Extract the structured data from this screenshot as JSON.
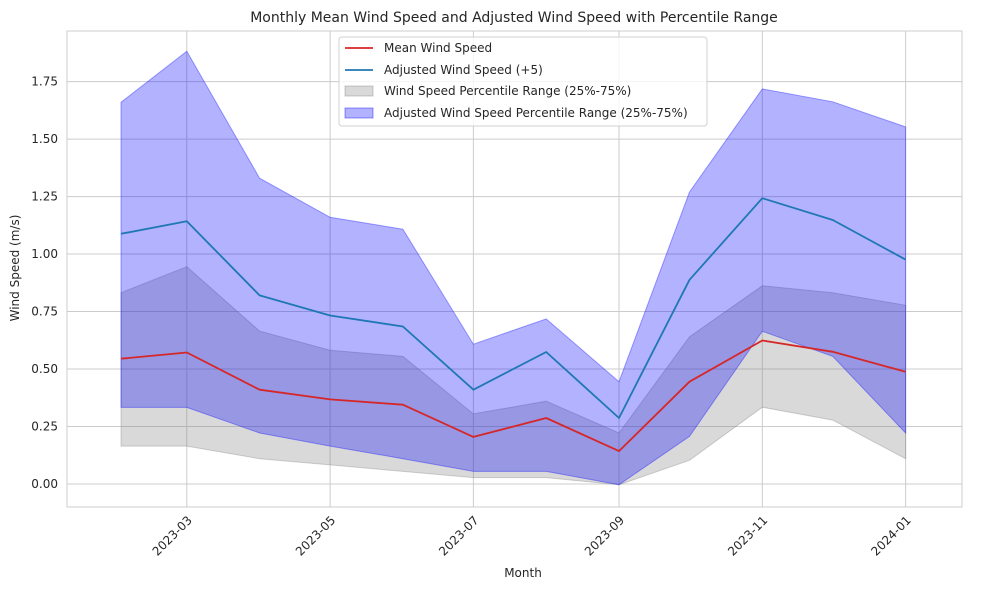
{
  "chart_data": {
    "type": "area",
    "title": "Monthly Mean Wind Speed and Adjusted Wind Speed with Percentile Range",
    "xlabel": "Month",
    "ylabel": "Wind Speed (m/s)",
    "x": [
      "2023-02-01",
      "2023-03-01",
      "2023-04-01",
      "2023-05-01",
      "2023-06-01",
      "2023-07-01",
      "2023-08-01",
      "2023-09-01",
      "2023-10-01",
      "2023-11-01",
      "2023-12-01",
      "2024-01-01"
    ],
    "xticks": [
      "2023-03",
      "2023-05",
      "2023-07",
      "2023-09",
      "2023-11",
      "2024-01"
    ],
    "yticks": [
      "0.00",
      "0.25",
      "0.50",
      "0.75",
      "1.00",
      "1.25",
      "1.50",
      "1.75"
    ],
    "xlim": [
      "2023-01-09",
      "2024-01-25"
    ],
    "ylim": [
      -0.1,
      1.97
    ],
    "grid": true,
    "legend_position": "upper-center",
    "series": [
      {
        "name": "Mean Wind Speed",
        "kind": "line",
        "color": "#d62728",
        "values": [
          0.545,
          0.572,
          0.41,
          0.368,
          0.345,
          0.205,
          0.287,
          0.143,
          0.445,
          0.624,
          0.575,
          0.488
        ]
      },
      {
        "name": "Adjusted Wind Speed (+5)",
        "kind": "line",
        "color": "#1f77b4",
        "values": [
          1.088,
          1.143,
          0.82,
          0.733,
          0.685,
          0.41,
          0.574,
          0.287,
          0.888,
          1.243,
          1.148,
          0.976
        ]
      }
    ],
    "bands": [
      {
        "name": "Wind Speed Percentile Range (25%-75%)",
        "color": "#808080",
        "opacity": 0.3,
        "lower": [
          0.165,
          0.165,
          0.11,
          0.083,
          0.055,
          0.028,
          0.028,
          -0.003,
          0.103,
          0.334,
          0.278,
          0.11
        ],
        "upper": [
          0.832,
          0.945,
          0.665,
          0.582,
          0.555,
          0.305,
          0.36,
          0.222,
          0.64,
          0.862,
          0.832,
          0.777
        ]
      },
      {
        "name": "Adjusted Wind Speed Percentile Range (25%-75%)",
        "color": "#0000ff",
        "opacity": 0.3,
        "lower": [
          0.333,
          0.333,
          0.222,
          0.165,
          0.11,
          0.055,
          0.055,
          -0.003,
          0.207,
          0.664,
          0.555,
          0.222
        ],
        "upper": [
          1.66,
          1.882,
          1.33,
          1.16,
          1.108,
          0.608,
          0.718,
          0.445,
          1.27,
          1.718,
          1.662,
          1.553
        ]
      }
    ]
  }
}
